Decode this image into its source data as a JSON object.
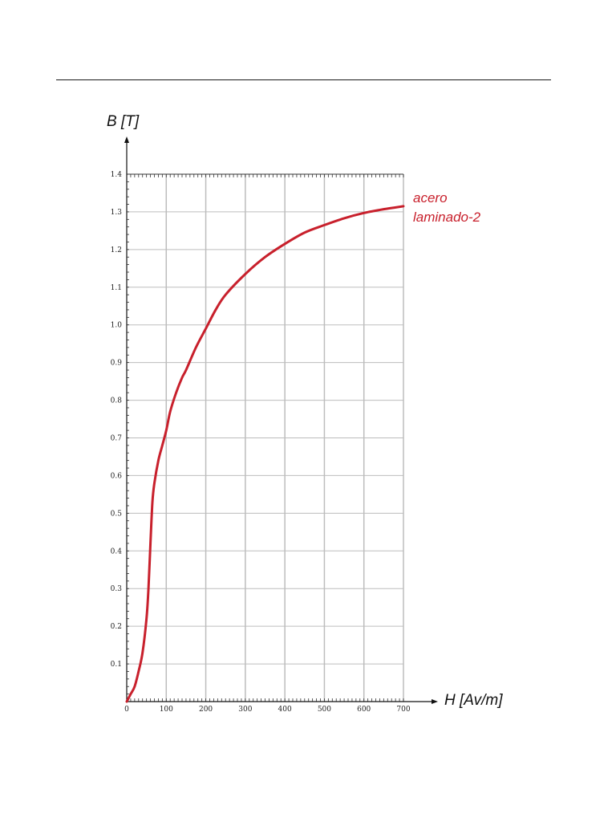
{
  "page": {
    "has_top_rule": true
  },
  "chart_data": {
    "type": "line",
    "xlabel": "H [Av/m]",
    "ylabel": "B [T]",
    "xlim": [
      0,
      700
    ],
    "ylim": [
      0,
      1.4
    ],
    "grid": true,
    "x_ticks": [
      0,
      100,
      200,
      300,
      400,
      500,
      600,
      700
    ],
    "y_ticks": [
      0.1,
      0.2,
      0.3,
      0.4,
      0.5,
      0.6,
      0.7,
      0.8,
      0.9,
      1.0,
      1.1,
      1.2,
      1.3,
      1.4
    ],
    "x_tick_labels": [
      "0",
      "100",
      "200",
      "300",
      "400",
      "500",
      "600",
      "700"
    ],
    "y_tick_labels": [
      "0.1",
      "0.2",
      "0.3",
      "0.4",
      "0.5",
      "0.6",
      "0.7",
      "0.8",
      "0.9",
      "1.0",
      "1.1",
      "1.2",
      "1.3",
      "1.4"
    ],
    "colors": {
      "series": "#c8202c",
      "grid": "#bdbdbd",
      "axis": "#111111"
    },
    "series": [
      {
        "label_lines": [
          "acero",
          "laminado-2"
        ],
        "x": [
          0,
          10,
          20,
          30,
          40,
          50,
          55,
          60,
          65,
          70,
          80,
          90,
          100,
          110,
          125,
          140,
          150,
          175,
          200,
          225,
          250,
          300,
          350,
          400,
          450,
          500,
          550,
          600,
          650,
          700
        ],
        "y": [
          0.0,
          0.02,
          0.04,
          0.08,
          0.13,
          0.22,
          0.3,
          0.42,
          0.53,
          0.58,
          0.64,
          0.68,
          0.72,
          0.77,
          0.82,
          0.86,
          0.88,
          0.94,
          0.99,
          1.04,
          1.08,
          1.135,
          1.18,
          1.215,
          1.245,
          1.265,
          1.283,
          1.297,
          1.307,
          1.315
        ]
      }
    ]
  }
}
